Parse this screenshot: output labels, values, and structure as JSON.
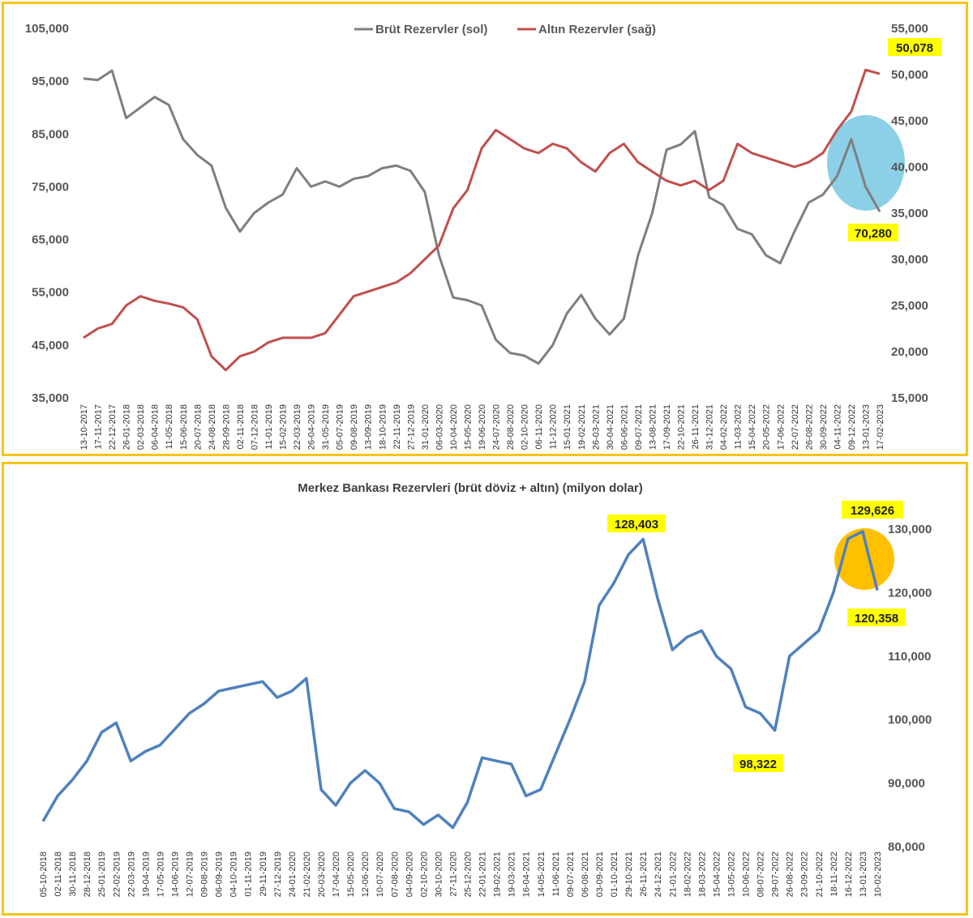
{
  "colors": {
    "gross": "#7f7f7f",
    "gold": "#c0504d",
    "total": "#4f81bd",
    "frame": "#f5c518",
    "callout_bg": "#ffff00",
    "blue_ellipse": "#7ecbe3",
    "yellow_ellipse": "#ffc000"
  },
  "chart_data": [
    {
      "type": "line",
      "title": "",
      "legend_position": "top-center",
      "y_left": {
        "min": 35000,
        "max": 105000,
        "step": 10000,
        "ticks": [
          "35,000",
          "45,000",
          "55,000",
          "65,000",
          "75,000",
          "85,000",
          "95,000",
          "105,000"
        ]
      },
      "y_right": {
        "min": 15000,
        "max": 55000,
        "step": 5000,
        "ticks": [
          "15,000",
          "20,000",
          "25,000",
          "30,000",
          "35,000",
          "40,000",
          "45,000",
          "50,000",
          "55,000"
        ]
      },
      "x_labels": [
        "13-10-2017",
        "17-11-2017",
        "22-12-2017",
        "26-01-2018",
        "02-03-2018",
        "06-04-2018",
        "11-05-2018",
        "15-06-2018",
        "20-07-2018",
        "24-08-2018",
        "28-09-2018",
        "02-11-2018",
        "07-12-2018",
        "11-01-2019",
        "15-02-2019",
        "22-03-2019",
        "26-04-2019",
        "31-05-2019",
        "05-07-2019",
        "09-08-2019",
        "13-09-2019",
        "18-10-2019",
        "22-11-2019",
        "27-12-2019",
        "31-01-2020",
        "06-03-2020",
        "10-04-2020",
        "15-05-2020",
        "19-06-2020",
        "24-07-2020",
        "28-08-2020",
        "02-10-2020",
        "06-11-2020",
        "11-12-2020",
        "15-01-2021",
        "19-02-2021",
        "26-03-2021",
        "30-04-2021",
        "06-06-2021",
        "09-07-2021",
        "13-08-2021",
        "17-09-2021",
        "22-10-2021",
        "26-11-2021",
        "31-12-2021",
        "04-02-2022",
        "11-03-2022",
        "15-04-2022",
        "20-05-2022",
        "17-06-2022",
        "22-07-2022",
        "26-08-2022",
        "30-09-2022",
        "04-11-2022",
        "09-12-2022",
        "13-01-2023",
        "17-02-2023"
      ],
      "series": [
        {
          "name": "Brüt Rezervler (sol)",
          "axis": "left",
          "values": [
            95500,
            95200,
            97000,
            88000,
            90000,
            92000,
            90500,
            84000,
            81000,
            79000,
            71000,
            66500,
            70000,
            72000,
            73500,
            78500,
            75000,
            76000,
            75000,
            76500,
            77000,
            78500,
            79000,
            78000,
            74000,
            62000,
            54000,
            53500,
            52500,
            46000,
            43500,
            43000,
            41500,
            45000,
            51000,
            54500,
            50000,
            47000,
            50000,
            62000,
            70000,
            82000,
            83000,
            85500,
            73000,
            71500,
            67000,
            66000,
            62000,
            60500,
            66500,
            72000,
            73500,
            77000,
            84000,
            75000,
            70280
          ]
        },
        {
          "name": "Altın Rezervler (sağ)",
          "axis": "right",
          "values": [
            21500,
            22500,
            23000,
            25000,
            26000,
            25500,
            25200,
            24800,
            23500,
            19500,
            18000,
            19500,
            20000,
            21000,
            21500,
            21500,
            21500,
            22000,
            24000,
            26000,
            26500,
            27000,
            27500,
            28500,
            30000,
            31500,
            35500,
            37500,
            42000,
            44000,
            43000,
            42000,
            41500,
            42500,
            42000,
            40500,
            39500,
            41500,
            42500,
            40500,
            39500,
            38500,
            38000,
            38500,
            37500,
            38500,
            42500,
            41500,
            41000,
            40500,
            40000,
            40500,
            41500,
            44000,
            46000,
            50500,
            50078
          ]
        }
      ],
      "annotations": [
        "50,078",
        "70,280"
      ]
    },
    {
      "type": "line",
      "title": "Merkez Bankası Rezervleri (brüt döviz + altın) (milyon dolar)",
      "y": {
        "min": 80000,
        "max": 130000,
        "step": 10000,
        "ticks": [
          "80,000",
          "90,000",
          "100,000",
          "110,000",
          "120,000",
          "130,000"
        ]
      },
      "x_labels": [
        "05-10-2018",
        "02-11-2018",
        "30-11-2018",
        "28-12-2018",
        "25-01-2019",
        "22-02-2019",
        "22-03-2019",
        "19-04-2019",
        "17-05-2019",
        "14-06-2019",
        "12-07-2019",
        "09-08-2019",
        "06-09-2019",
        "04-10-2019",
        "01-11-2019",
        "29-11-2019",
        "27-12-2019",
        "24-01-2020",
        "21-02-2020",
        "20-03-2020",
        "17-04-2020",
        "15-05-2020",
        "12-06-2020",
        "10-07-2020",
        "07-08-2020",
        "04-09-2020",
        "02-10-2020",
        "30-10-2020",
        "27-11-2020",
        "25-12-2020",
        "22-01-2021",
        "19-02-2021",
        "19-03-2021",
        "16-04-2021",
        "14-05-2021",
        "11-06-2021",
        "09-07-2021",
        "06-08-2021",
        "03-09-2021",
        "01-10-2021",
        "29-10-2021",
        "26-11-2021",
        "24-12-2021",
        "21-01-2022",
        "18-02-2022",
        "18-03-2022",
        "15-04-2022",
        "13-05-2022",
        "10-06-2022",
        "08-07-2022",
        "29-07-2022",
        "26-08-2022",
        "23-09-2022",
        "21-10-2022",
        "18-11-2022",
        "16-12-2022",
        "13-01-2023",
        "10-02-2023"
      ],
      "series": [
        {
          "name": "Merkez Bankası Rezervleri",
          "values": [
            84000,
            88000,
            90500,
            93500,
            98000,
            99500,
            93500,
            95000,
            96000,
            98500,
            101000,
            102500,
            104500,
            105000,
            105500,
            106000,
            103500,
            104500,
            106500,
            89000,
            86500,
            90000,
            92000,
            90000,
            86000,
            85500,
            83500,
            85000,
            83000,
            87000,
            94000,
            93500,
            93000,
            88000,
            89000,
            94500,
            100000,
            106000,
            118000,
            121500,
            126000,
            128403,
            119000,
            111000,
            113000,
            114000,
            110000,
            108000,
            102000,
            101000,
            98322,
            110000,
            112000,
            114000,
            120000,
            128500,
            129626,
            120358
          ]
        }
      ],
      "annotations": [
        "128,403",
        "98,322",
        "129,626",
        "120,358"
      ]
    }
  ]
}
